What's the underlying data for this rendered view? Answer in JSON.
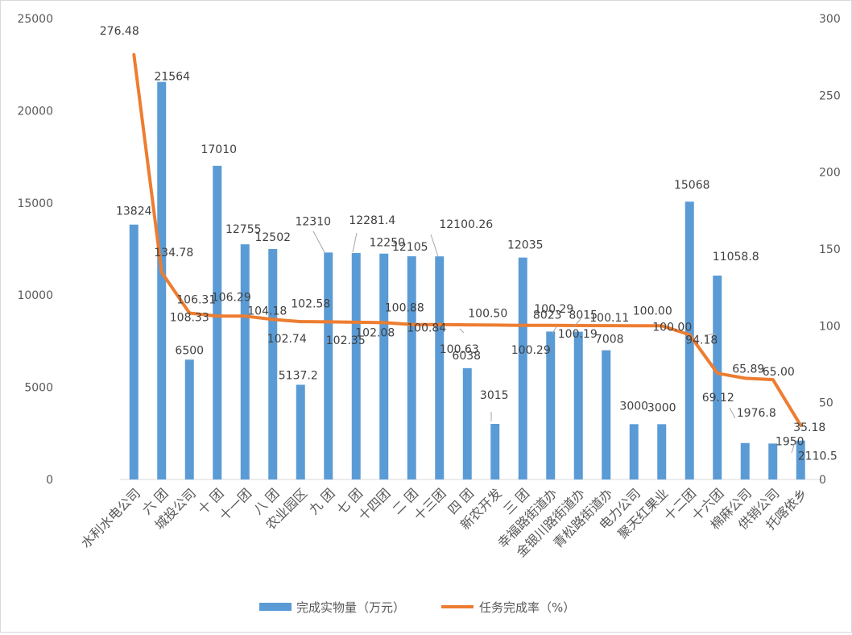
{
  "chart_data": {
    "type": "bar+line",
    "categories": [
      "水利水电公司",
      "六 团",
      "城投公司",
      "十 团",
      "十一团",
      "八 团",
      "农业园区",
      "九 团",
      "七 团",
      "十四团",
      "二 团",
      "十三团",
      "四 团",
      "新农开发",
      "三 团",
      "幸福路街道办",
      "金银川路街道办",
      "青松路街道办",
      "电力公司",
      "聚天红果业",
      "十二团",
      "十六团",
      "棉麻公司",
      "供销公司",
      "托喀依乡"
    ],
    "series": [
      {
        "name": "完成实物量（万元）",
        "type": "bar",
        "axis": "left",
        "color": "#5B9BD5",
        "values": [
          13824,
          21564,
          6500,
          17010,
          12755,
          12502,
          5137.2,
          12310,
          12281.4,
          12250,
          12105,
          12100.26,
          6038,
          3015,
          12035,
          8023,
          8015,
          7008,
          3000,
          3000,
          15068,
          11058.8,
          1976.8,
          1950,
          2110.5
        ],
        "labels": [
          "13824",
          "21564",
          "6500",
          "17010",
          "12755",
          "12502",
          "5137.2",
          "12310",
          "12281.4",
          "12250",
          "12105",
          "12100.26",
          "6038",
          "3015",
          "12035",
          "8023",
          "8015",
          "7008",
          "3000",
          "3000",
          "15068",
          "11058.8",
          "1976.8",
          "1950",
          "2110.5"
        ]
      },
      {
        "name": "任务完成率（%）",
        "type": "line",
        "axis": "right",
        "color": "#ED7D31",
        "values": [
          276.48,
          134.78,
          108.33,
          106.31,
          106.29,
          104.18,
          102.74,
          102.58,
          102.35,
          102.08,
          100.88,
          100.84,
          100.63,
          100.5,
          100.29,
          100.29,
          100.19,
          100.11,
          100.0,
          100.0,
          94.18,
          69.12,
          65.89,
          65.0,
          35.18
        ],
        "labels": [
          "276.48",
          "134.78",
          "108.33",
          "106.31",
          "106.29",
          "104.18",
          "102.74",
          "102.58",
          "102.35",
          "102.08",
          "100.88",
          "100.84",
          "100.63",
          "100.50",
          "100.29",
          "100.29",
          "100.19",
          "100.11",
          "100.00",
          "100.00",
          "94.18",
          "69.12",
          "65.89",
          "65.00",
          "35.18"
        ]
      }
    ],
    "y_left": {
      "min": 0,
      "max": 25000,
      "step": 5000,
      "ticks": [
        "0",
        "5000",
        "10000",
        "15000",
        "20000",
        "25000"
      ]
    },
    "y_right": {
      "min": 0,
      "max": 300,
      "step": 50,
      "ticks": [
        "0",
        "50",
        "100",
        "150",
        "200",
        "250",
        "300"
      ]
    },
    "legend_position": "bottom",
    "grid": false
  }
}
